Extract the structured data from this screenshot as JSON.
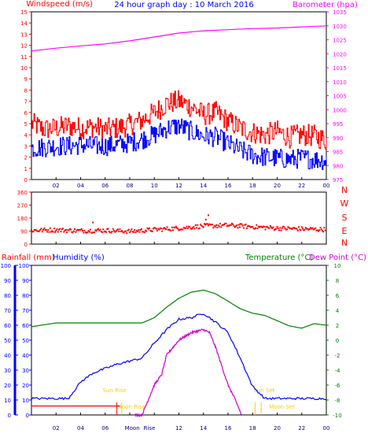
{
  "chart_data": [
    {
      "type": "line",
      "title": "24 hour graph day : 10 March 2016",
      "left_label": "Windspeed (m/s)",
      "right_label": "Barometer (hpa)",
      "x_ticks": [
        "02",
        "04",
        "06",
        "08",
        "10",
        "12",
        "14",
        "16",
        "18",
        "20",
        "22",
        "00"
      ],
      "y_left_ticks": [
        "0",
        "1",
        "2",
        "3",
        "4",
        "5",
        "6",
        "7",
        "8",
        "9",
        "10",
        "11",
        "12",
        "13",
        "14",
        "15"
      ],
      "y_left_range": [
        0,
        15
      ],
      "y_right_ticks": [
        "975",
        "980",
        "985",
        "990",
        "995",
        "1000",
        "1005",
        "1010",
        "1015",
        "1020",
        "1025",
        "1030",
        "1035"
      ],
      "y_right_range": [
        975,
        1035
      ],
      "x_range_hours": [
        0,
        24
      ],
      "series": [
        {
          "color": "#ff00ff",
          "axis": "right",
          "x": [
            0,
            2,
            4,
            6,
            8,
            10,
            12,
            14,
            16,
            18,
            20,
            22,
            24
          ],
          "values": [
            1021.0,
            1022.0,
            1022.8,
            1023.5,
            1024.6,
            1026.0,
            1027.4,
            1028.2,
            1028.6,
            1029.0,
            1029.2,
            1029.6,
            1030.0
          ]
        },
        {
          "color": "#ff0000",
          "axis": "left",
          "x": [
            0,
            1,
            2,
            3,
            4,
            5,
            6,
            7,
            8,
            9,
            10,
            11,
            12,
            13,
            14,
            15,
            16,
            17,
            18,
            19,
            20,
            21,
            22,
            23,
            24
          ],
          "values": [
            5.0,
            4.5,
            4.6,
            4.8,
            4.6,
            4.7,
            4.5,
            4.6,
            4.9,
            5.3,
            6.0,
            6.8,
            7.0,
            6.5,
            5.8,
            6.0,
            5.2,
            4.6,
            4.2,
            4.0,
            4.3,
            3.8,
            4.0,
            3.9,
            3.5
          ]
        },
        {
          "color": "#0000ff",
          "axis": "left",
          "x": [
            0,
            1,
            2,
            3,
            4,
            5,
            6,
            7,
            8,
            9,
            10,
            11,
            12,
            13,
            14,
            15,
            16,
            17,
            18,
            19,
            20,
            21,
            22,
            23,
            24
          ],
          "values": [
            2.8,
            2.9,
            3.0,
            3.0,
            3.1,
            3.0,
            3.0,
            3.1,
            3.3,
            3.6,
            4.0,
            4.6,
            4.8,
            4.3,
            3.9,
            3.8,
            3.2,
            2.6,
            2.2,
            2.0,
            1.9,
            1.8,
            1.9,
            1.8,
            1.7
          ]
        }
      ]
    },
    {
      "type": "scatter",
      "y_ticks": [
        "0",
        "90",
        "180",
        "270",
        "360"
      ],
      "y_range": [
        0,
        360
      ],
      "compass_labels": [
        "N",
        "W",
        "S",
        "E",
        "N"
      ],
      "x_ticks": [
        "02",
        "04",
        "06",
        "08",
        "10",
        "12",
        "14",
        "16",
        "18",
        "20",
        "22",
        "00"
      ],
      "series": [
        {
          "color": "#ff0000",
          "x": [
            0,
            2,
            4,
            6,
            8,
            10,
            12,
            14,
            16,
            18,
            20,
            22,
            24
          ],
          "values": [
            95,
            98,
            92,
            95,
            88,
            100,
            110,
            125,
            130,
            120,
            110,
            105,
            100
          ]
        }
      ]
    },
    {
      "type": "line",
      "left_labels": [
        "Rainfall (mm)",
        "Humidity (%)"
      ],
      "right_labels": [
        "Temperature (°C)",
        "Dew Point (°C)"
      ],
      "x_ticks": [
        "02",
        "04",
        "06",
        "08",
        "10",
        "12",
        "14",
        "16",
        "18",
        "20",
        "22",
        "00"
      ],
      "y_rain_ticks": [
        "0",
        "10",
        "20",
        "30",
        "40",
        "50",
        "60",
        "70",
        "80",
        "90",
        "100"
      ],
      "y_hum_ticks": [
        "0",
        "10",
        "20",
        "30",
        "40",
        "50",
        "60",
        "70",
        "80",
        "90",
        "100"
      ],
      "y_temp_ticks": [
        "-10",
        "-8",
        "-6",
        "-4",
        "-2",
        "0",
        "2",
        "4",
        "6",
        "8",
        "10"
      ],
      "y_temp_range": [
        -10,
        10
      ],
      "annotations": [
        "Sun Rise",
        "Moon Rise",
        "Sun Set",
        "Moon Set",
        "Moon",
        "Rise"
      ],
      "series": [
        {
          "name": "Temperature (°C)",
          "color": "#008000",
          "axis": "temp",
          "x": [
            0,
            2,
            4,
            6,
            8,
            9,
            10,
            11,
            12,
            13,
            14,
            15,
            16,
            17,
            18,
            19,
            20,
            21,
            22,
            23,
            24
          ],
          "values": [
            1.8,
            2.3,
            2.3,
            2.3,
            2.3,
            2.3,
            3.0,
            4.4,
            5.6,
            6.4,
            6.7,
            6.2,
            5.2,
            4.2,
            3.6,
            3.3,
            2.6,
            1.9,
            1.6,
            2.2,
            2.0
          ]
        },
        {
          "name": "Humidity (%)",
          "color": "#0000ff",
          "axis": "hum",
          "x": [
            0,
            2,
            3,
            4,
            5,
            6,
            7,
            8,
            9,
            10,
            11,
            12,
            13,
            14,
            15,
            16,
            17,
            18,
            19,
            20,
            24
          ],
          "values": [
            11,
            11,
            11,
            22,
            28,
            31,
            34,
            36,
            38,
            48,
            57,
            64,
            65,
            68,
            62,
            55,
            38,
            19,
            11,
            11,
            11
          ]
        },
        {
          "name": "Dew Point (°C)",
          "color": "#cc00cc",
          "axis": "temp",
          "x": [
            8.4,
            9,
            9.5,
            10,
            10.6,
            11,
            12,
            13,
            14,
            14.5,
            15,
            16,
            16.6,
            17.1
          ],
          "values": [
            -10,
            -10,
            -8.0,
            -6.0,
            -4.6,
            -2.0,
            0.0,
            1.0,
            1.4,
            1.0,
            -1.0,
            -6.0,
            -8.0,
            -10
          ]
        },
        {
          "name": "Rainfall (mm)",
          "color": "#ff0000",
          "axis": "hum",
          "x": [
            0,
            7.2
          ],
          "values": [
            6,
            6
          ]
        }
      ]
    }
  ]
}
